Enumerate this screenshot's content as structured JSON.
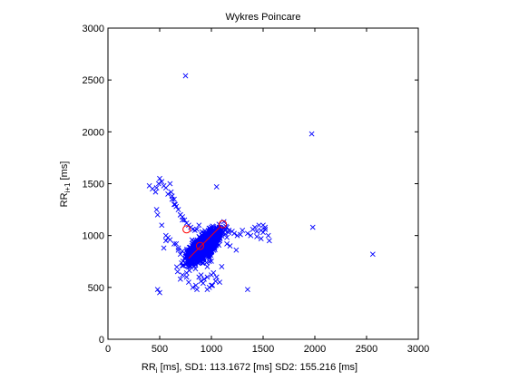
{
  "chart_data": {
    "type": "scatter",
    "title": "Wykres Poincare",
    "xlabel": {
      "main": "RR",
      "sub": "i",
      "rest": " [ms], SD1: 113.1672 [ms] SD2: 155.216 [ms]"
    },
    "ylabel": {
      "main": "RR",
      "sub": "i+1",
      "rest": " [ms]"
    },
    "xlim": [
      0,
      3000
    ],
    "ylim": [
      0,
      3000
    ],
    "xticks": [
      "0",
      "500",
      "1000",
      "1500",
      "2000",
      "2500",
      "3000"
    ],
    "yticks": [
      "0",
      "500",
      "1000",
      "1500",
      "2000",
      "2500",
      "3000"
    ],
    "grid": false,
    "colors": {
      "points": "#0000ff",
      "circles": "#ff0000",
      "line": "#ff0000",
      "axes": "#000000"
    },
    "series": [
      {
        "marker": "x",
        "color": "#0000ff",
        "x": [
          750,
          1970,
          1980,
          2560,
          1050,
          470,
          490,
          500,
          520,
          540,
          560,
          580,
          600,
          610,
          620,
          640,
          650,
          660,
          680,
          700,
          720,
          740,
          760,
          780,
          800,
          820,
          840,
          860,
          880,
          1000,
          1020,
          1050,
          1100,
          1150,
          1170,
          1200,
          1220,
          1250,
          1280,
          1300,
          1350,
          1380,
          1400,
          1420,
          1440,
          1460,
          1480,
          1500,
          1520,
          1550,
          1560,
          1440,
          1480,
          1500,
          1520,
          400,
          430,
          460,
          480,
          470,
          520,
          560,
          620,
          640,
          700,
          720,
          760,
          780,
          820,
          850,
          880,
          900,
          920,
          960,
          980,
          1000,
          1020,
          1050,
          1080,
          1100,
          1150,
          1180,
          1240,
          1350,
          860,
          900,
          930,
          960,
          1000,
          1040,
          960,
          980,
          1010,
          700,
          720,
          760,
          800,
          840,
          680,
          660,
          720,
          750,
          780,
          560,
          580,
          600,
          640,
          680,
          700,
          740,
          480,
          500,
          540
        ],
        "y": [
          2540,
          1980,
          1080,
          820,
          1470,
          1460,
          1500,
          1550,
          1520,
          1480,
          1460,
          1400,
          1500,
          1420,
          1380,
          1350,
          1300,
          1280,
          1250,
          1200,
          1180,
          1150,
          1120,
          1100,
          1080,
          1060,
          1050,
          1060,
          1100,
          1080,
          1060,
          1050,
          1060,
          1080,
          1050,
          1040,
          1020,
          1000,
          1010,
          1050,
          1020,
          1000,
          1060,
          1080,
          1040,
          1100,
          1050,
          1030,
          1080,
          1000,
          950,
          990,
          970,
          1100,
          1060,
          1480,
          1450,
          1420,
          1200,
          1250,
          1100,
          1000,
          1350,
          1300,
          1200,
          1150,
          600,
          550,
          500,
          520,
          600,
          620,
          540,
          480,
          500,
          520,
          640,
          600,
          550,
          700,
          920,
          900,
          860,
          480,
          480,
          560,
          580,
          600,
          620,
          560,
          700,
          750,
          520,
          580,
          620,
          640,
          700,
          760,
          880,
          920,
          850,
          820,
          800,
          950,
          980,
          960,
          920,
          860,
          820,
          780,
          480,
          450,
          880
        ]
      }
    ],
    "cluster": {
      "description_free": true,
      "center": [
        930,
        900
      ],
      "spread_along": 155.216,
      "spread_across": 113.1672
    },
    "circles": [
      {
        "x": 760,
        "y": 1060
      },
      {
        "x": 890,
        "y": 900
      },
      {
        "x": 1110,
        "y": 1110
      }
    ],
    "line": {
      "x": [
        780,
        1080
      ],
      "y": [
        780,
        1080
      ]
    }
  }
}
